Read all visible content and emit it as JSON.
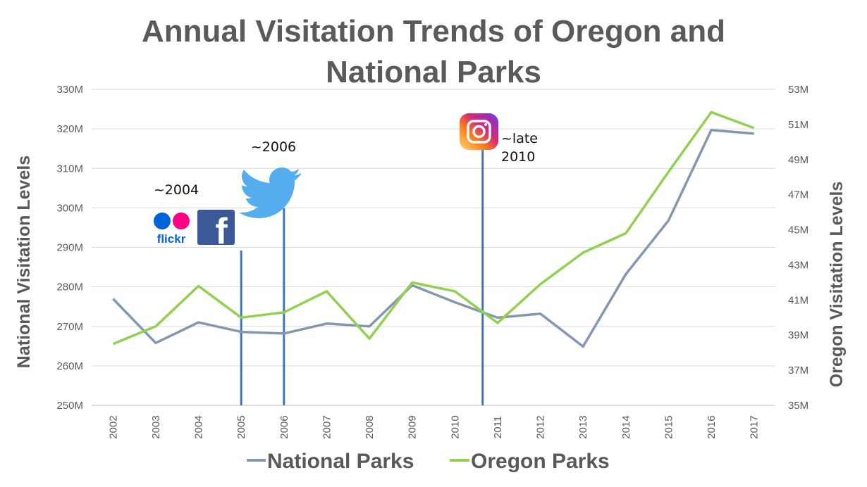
{
  "chart_data": {
    "type": "line",
    "title": [
      "Annual Visitation Trends of Oregon and",
      "National Parks"
    ],
    "ylabel_left": "National Visitation Levels",
    "ylabel_right": "Oregon Visitation Levels",
    "categories": [
      "2002",
      "2003",
      "2004",
      "2005",
      "2006",
      "2007",
      "2008",
      "2009",
      "2010",
      "2011",
      "2012",
      "2013",
      "2014",
      "2015",
      "2016",
      "2017"
    ],
    "y_left": {
      "range": [
        250,
        330
      ],
      "ticks": [
        "250M",
        "260M",
        "270M",
        "280M",
        "290M",
        "300M",
        "310M",
        "320M",
        "330M"
      ]
    },
    "y_right": {
      "range": [
        35,
        53
      ],
      "ticks": [
        "35M",
        "37M",
        "39M",
        "41M",
        "43M",
        "45M",
        "47M",
        "49M",
        "51M",
        "53M"
      ]
    },
    "series": [
      {
        "name": "National Parks",
        "axis": "left",
        "color": "#8497b0",
        "values": [
          277.0,
          265.8,
          271.0,
          268.6,
          268.2,
          270.7,
          270.0,
          280.4,
          276.1,
          272.2,
          273.2,
          264.9,
          283.2,
          296.8,
          319.7,
          318.8
        ]
      },
      {
        "name": "Oregon Parks",
        "axis": "right",
        "color": "#92d050",
        "values": [
          38.5,
          39.5,
          41.8,
          40.0,
          40.3,
          41.5,
          38.8,
          42.0,
          41.5,
          39.7,
          41.9,
          43.7,
          44.8,
          48.3,
          51.7,
          50.8
        ]
      }
    ],
    "markers": [
      {
        "label": "~2004",
        "position": 3,
        "lines": [
          "~2004"
        ],
        "icons": [
          "flickr-logo",
          "facebook-logo"
        ]
      },
      {
        "label": "~2006",
        "position": 4,
        "lines": [
          "~2006"
        ],
        "icons": [
          "twitter-logo"
        ]
      },
      {
        "label": "~late 2010",
        "position": 8.65,
        "lines": [
          "~late",
          "2010"
        ],
        "icons": [
          "instagram-logo"
        ]
      }
    ],
    "marker_line_color": "#4472c4",
    "grid": true,
    "legend": "bottom"
  },
  "logo_text": {
    "flickr": "flickr",
    "facebook": "f"
  }
}
